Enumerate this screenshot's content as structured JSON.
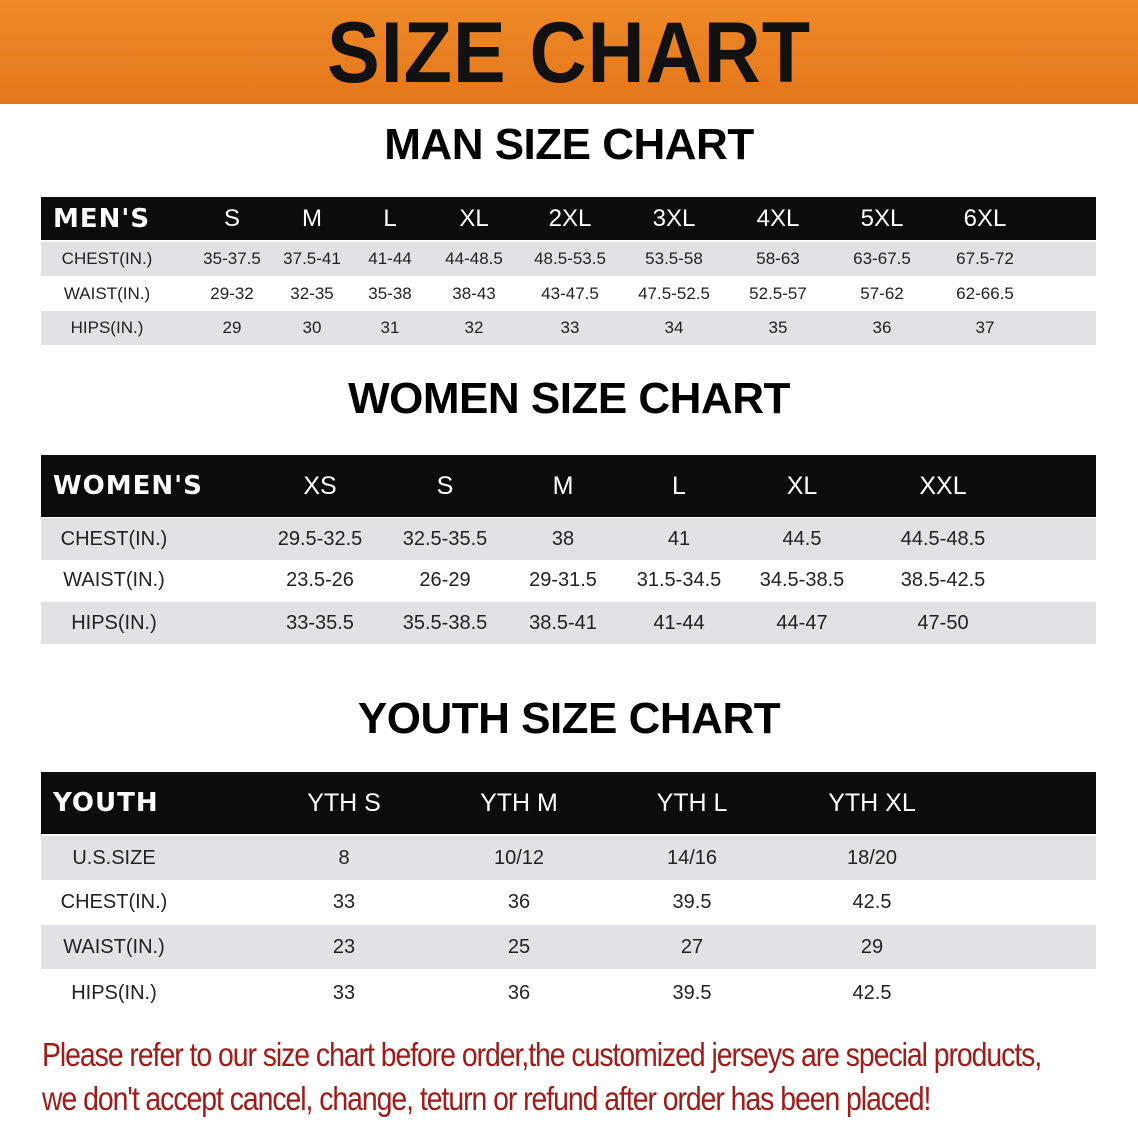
{
  "banner": {
    "title": "SIZE CHART",
    "color": "#e87a1e"
  },
  "men": {
    "title": "MAN SIZE CHART",
    "header": [
      "MEN'S",
      "S",
      "M",
      "L",
      "XL",
      "2XL",
      "3XL",
      "4XL",
      "5XL",
      "6XL"
    ],
    "rows": [
      [
        "CHEST(IN.)",
        "35-37.5",
        "37.5-41",
        "41-44",
        "44-48.5",
        "48.5-53.5",
        "53.5-58",
        "58-63",
        "63-67.5",
        "67.5-72"
      ],
      [
        "WAIST(IN.)",
        "29-32",
        "32-35",
        "35-38",
        "38-43",
        "43-47.5",
        "47.5-52.5",
        "52.5-57",
        "57-62",
        "62-66.5"
      ],
      [
        "HIPS(IN.)",
        "29",
        "30",
        "31",
        "32",
        "33",
        "34",
        "35",
        "36",
        "37"
      ]
    ]
  },
  "women": {
    "title": "WOMEN SIZE CHART",
    "header": [
      "WOMEN'S",
      "XS",
      "S",
      "M",
      "L",
      "XL",
      "XXL"
    ],
    "rows": [
      [
        "CHEST(IN.)",
        "29.5-32.5",
        "32.5-35.5",
        "38",
        "41",
        "44.5",
        "44.5-48.5"
      ],
      [
        "WAIST(IN.)",
        "23.5-26",
        "26-29",
        "29-31.5",
        "31.5-34.5",
        "34.5-38.5",
        "38.5-42.5"
      ],
      [
        "HIPS(IN.)",
        "33-35.5",
        "35.5-38.5",
        "38.5-41",
        "41-44",
        "44-47",
        "47-50"
      ]
    ]
  },
  "youth": {
    "title": "YOUTH SIZE CHART",
    "header": [
      "YOUTH",
      "YTH S",
      "YTH M",
      "YTH L",
      "YTH XL"
    ],
    "rows": [
      [
        "U.S.SIZE",
        "8",
        "10/12",
        "14/16",
        "18/20"
      ],
      [
        "CHEST(IN.)",
        "33",
        "36",
        "39.5",
        "42.5"
      ],
      [
        "WAIST(IN.)",
        "23",
        "25",
        "27",
        "29"
      ],
      [
        "HIPS(IN.)",
        "33",
        "36",
        "39.5",
        "42.5"
      ]
    ]
  },
  "notice": {
    "line1": "Please refer to our size chart before order,the customized jerseys are special products,",
    "line2": "we don't accept cancel, change, teturn or refund after order has been placed!",
    "color": "#a31a1a"
  }
}
